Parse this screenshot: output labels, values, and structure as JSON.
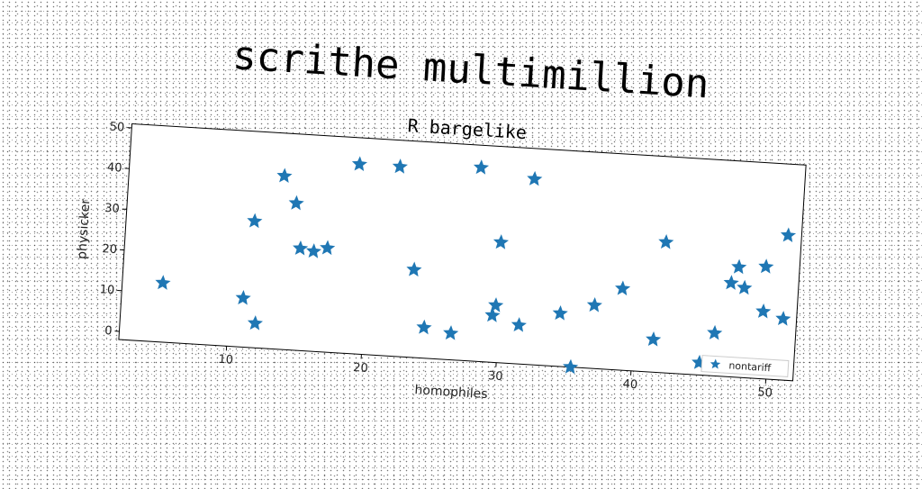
{
  "chart_data": {
    "type": "scatter",
    "title": "scrithe multimillion",
    "subtitle": "R bargelike",
    "xlabel": "homophiles",
    "ylabel": "physicker",
    "xlim": [
      2,
      52
    ],
    "ylim": [
      -2,
      51
    ],
    "xticks": [
      10,
      20,
      30,
      40,
      50
    ],
    "yticks": [
      0,
      10,
      20,
      30,
      40,
      50
    ],
    "marker": "star",
    "color": "#1f77b4",
    "legend": {
      "position": "bottom-right",
      "labels": [
        "nontariff"
      ]
    },
    "series": [
      {
        "name": "nontariff",
        "points": [
          [
            5.0,
            12.5
          ],
          [
            11.0,
            10.0
          ],
          [
            11.5,
            29.0
          ],
          [
            12.0,
            4.0
          ],
          [
            13.5,
            40.5
          ],
          [
            14.5,
            34.0
          ],
          [
            15.0,
            23.0
          ],
          [
            16.0,
            22.5
          ],
          [
            17.0,
            23.5
          ],
          [
            19.0,
            44.5
          ],
          [
            22.0,
            44.5
          ],
          [
            23.5,
            19.5
          ],
          [
            24.5,
            5.5
          ],
          [
            26.5,
            4.5
          ],
          [
            28.0,
            45.5
          ],
          [
            29.5,
            9.5
          ],
          [
            29.7,
            12.0
          ],
          [
            29.8,
            27.5
          ],
          [
            31.5,
            7.5
          ],
          [
            32.0,
            43.5
          ],
          [
            34.5,
            11.0
          ],
          [
            35.5,
            -2.0
          ],
          [
            37.0,
            13.5
          ],
          [
            39.0,
            18.0
          ],
          [
            41.5,
            6.0
          ],
          [
            42.0,
            30.0
          ],
          [
            45.0,
            1.0
          ],
          [
            46.0,
            8.5
          ],
          [
            47.0,
            21.0
          ],
          [
            47.5,
            25.0
          ],
          [
            48.0,
            20.0
          ],
          [
            49.5,
            14.5
          ],
          [
            49.5,
            25.5
          ],
          [
            51.0,
            13.0
          ],
          [
            51.0,
            33.5
          ]
        ]
      }
    ]
  }
}
